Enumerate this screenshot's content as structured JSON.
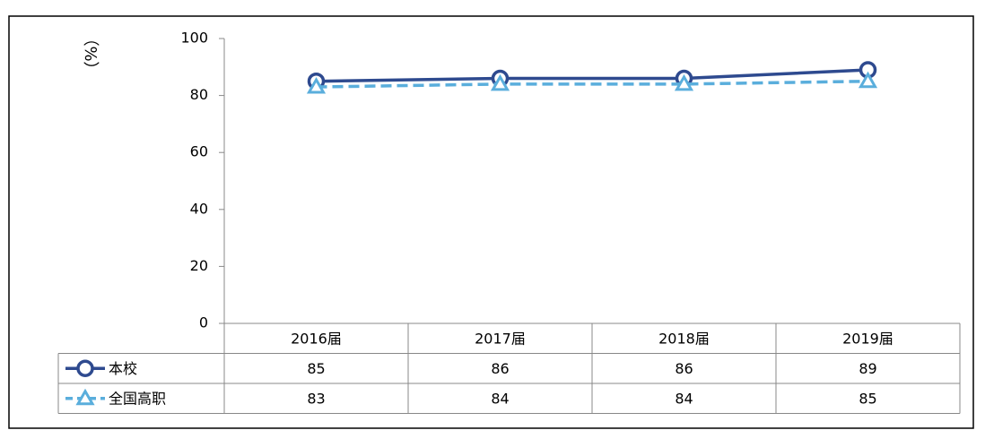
{
  "chart_data": {
    "type": "line",
    "y_label": "（%）",
    "categories": [
      "2016届",
      "2017届",
      "2018届",
      "2019届"
    ],
    "series": [
      {
        "name": "本校",
        "color": "#2e4a8f",
        "marker": "circle",
        "dash": false,
        "values": [
          85,
          86,
          86,
          89
        ]
      },
      {
        "name": "全国高职",
        "color": "#5aaedc",
        "marker": "triangle",
        "dash": true,
        "values": [
          83,
          84,
          84,
          85
        ]
      }
    ],
    "ylim": [
      0,
      100
    ],
    "yticks": [
      0,
      20,
      40,
      60,
      80,
      100
    ],
    "grid": false
  }
}
